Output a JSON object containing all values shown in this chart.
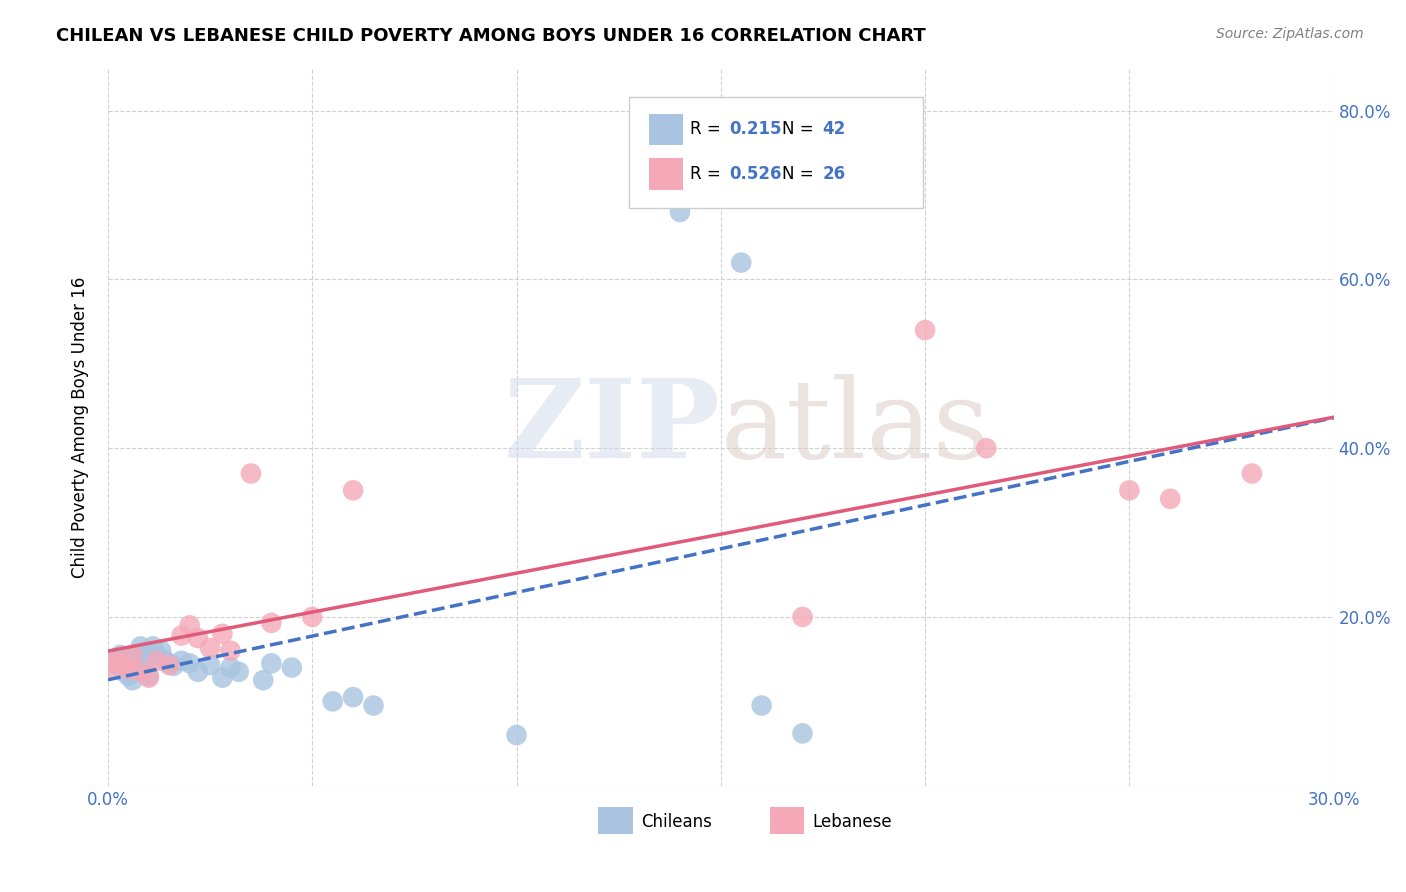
{
  "title": "CHILEAN VS LEBANESE CHILD POVERTY AMONG BOYS UNDER 16 CORRELATION CHART",
  "source": "Source: ZipAtlas.com",
  "ylabel": "Child Poverty Among Boys Under 16",
  "xlim": [
    0.0,
    0.3
  ],
  "ylim": [
    0.0,
    0.85
  ],
  "chileans_R": "0.215",
  "chileans_N": "42",
  "lebanese_R": "0.526",
  "lebanese_N": "26",
  "chilean_color": "#a8c4e0",
  "lebanese_color": "#f4a8b8",
  "chilean_line_color": "#4472c4",
  "lebanese_line_color": "#e05a7a",
  "watermark_zip": "ZIP",
  "watermark_atlas": "atlas",
  "background_color": "#ffffff",
  "grid_color": "#cccccc",
  "chilean_x": [
    0.001,
    0.002,
    0.002,
    0.003,
    0.003,
    0.004,
    0.004,
    0.005,
    0.005,
    0.006,
    0.006,
    0.007,
    0.007,
    0.008,
    0.008,
    0.009,
    0.01,
    0.01,
    0.011,
    0.012,
    0.013,
    0.014,
    0.015,
    0.016,
    0.018,
    0.02,
    0.022,
    0.025,
    0.028,
    0.03,
    0.032,
    0.038,
    0.04,
    0.045,
    0.055,
    0.06,
    0.065,
    0.1,
    0.14,
    0.155,
    0.16,
    0.17
  ],
  "chilean_y": [
    0.145,
    0.15,
    0.148,
    0.14,
    0.155,
    0.143,
    0.135,
    0.148,
    0.13,
    0.145,
    0.125,
    0.138,
    0.155,
    0.135,
    0.165,
    0.145,
    0.158,
    0.13,
    0.165,
    0.155,
    0.16,
    0.148,
    0.145,
    0.142,
    0.148,
    0.145,
    0.135,
    0.143,
    0.128,
    0.14,
    0.135,
    0.125,
    0.145,
    0.14,
    0.1,
    0.105,
    0.095,
    0.06,
    0.68,
    0.62,
    0.095,
    0.062
  ],
  "lebanese_x": [
    0.001,
    0.002,
    0.003,
    0.004,
    0.005,
    0.006,
    0.008,
    0.01,
    0.012,
    0.015,
    0.018,
    0.02,
    0.022,
    0.025,
    0.028,
    0.03,
    0.035,
    0.04,
    0.05,
    0.06,
    0.17,
    0.2,
    0.215,
    0.25,
    0.26,
    0.28
  ],
  "lebanese_y": [
    0.14,
    0.148,
    0.145,
    0.143,
    0.138,
    0.155,
    0.135,
    0.128,
    0.148,
    0.143,
    0.178,
    0.19,
    0.175,
    0.163,
    0.18,
    0.16,
    0.37,
    0.193,
    0.2,
    0.35,
    0.2,
    0.54,
    0.4,
    0.35,
    0.34,
    0.37
  ]
}
